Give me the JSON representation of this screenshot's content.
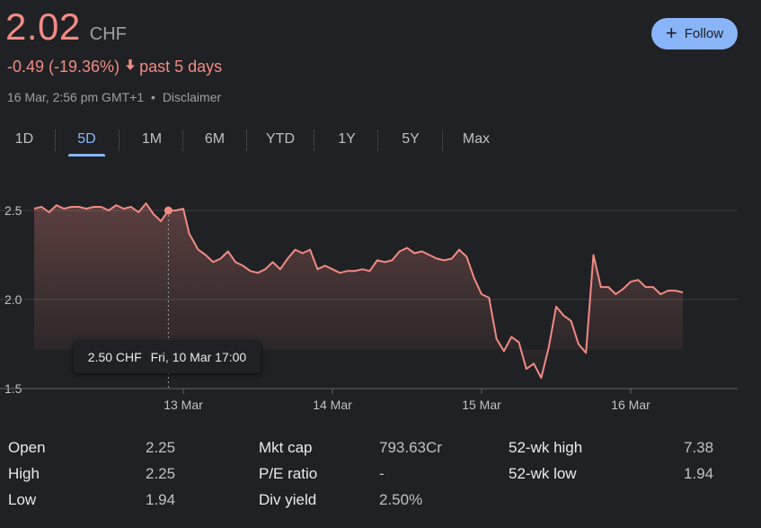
{
  "quote": {
    "price": "2.02",
    "currency": "CHF",
    "change_text": "-0.49 (-19.36%)",
    "period_text": "past 5 days",
    "timestamp": "16 Mar, 2:56 pm GMT+1",
    "separator": "•",
    "disclaimer": "Disclaimer",
    "follow_label": "Follow",
    "accent_color": "#f28b82",
    "link_color": "#8ab4f8"
  },
  "tabs": [
    {
      "label": "1D",
      "active": false
    },
    {
      "label": "5D",
      "active": true
    },
    {
      "label": "1M",
      "active": false
    },
    {
      "label": "6M",
      "active": false
    },
    {
      "label": "YTD",
      "active": false
    },
    {
      "label": "1Y",
      "active": false
    },
    {
      "label": "5Y",
      "active": false
    },
    {
      "label": "Max",
      "active": false
    }
  ],
  "tooltip": {
    "value": "2.50 CHF",
    "time": "Fri, 10 Mar 17:00"
  },
  "chart_data": {
    "type": "area",
    "ylim": [
      1.5,
      2.55
    ],
    "yticks": [
      2.5,
      2.0,
      1.5
    ],
    "ytick_labels": [
      "2.5",
      "2.0",
      "1.5"
    ],
    "xticks": [
      {
        "label": "13 Mar",
        "x": 2.0
      },
      {
        "label": "14 Mar",
        "x": 3.0
      },
      {
        "label": "15 Mar",
        "x": 4.0
      },
      {
        "label": "16 Mar",
        "x": 5.0
      }
    ],
    "xlim": [
      1.0,
      5.75
    ],
    "highlight": {
      "x": 1.9,
      "y": 2.5
    },
    "series": [
      {
        "values": [
          [
            1.0,
            2.51
          ],
          [
            1.05,
            2.52
          ],
          [
            1.1,
            2.49
          ],
          [
            1.15,
            2.53
          ],
          [
            1.2,
            2.51
          ],
          [
            1.25,
            2.52
          ],
          [
            1.3,
            2.52
          ],
          [
            1.35,
            2.51
          ],
          [
            1.4,
            2.52
          ],
          [
            1.45,
            2.52
          ],
          [
            1.5,
            2.5
          ],
          [
            1.55,
            2.53
          ],
          [
            1.6,
            2.51
          ],
          [
            1.65,
            2.52
          ],
          [
            1.7,
            2.49
          ],
          [
            1.75,
            2.54
          ],
          [
            1.8,
            2.48
          ],
          [
            1.85,
            2.44
          ],
          [
            1.9,
            2.5
          ],
          [
            1.95,
            2.5
          ],
          [
            2.0,
            2.51
          ],
          [
            2.04,
            2.37
          ],
          [
            2.1,
            2.28
          ],
          [
            2.15,
            2.25
          ],
          [
            2.2,
            2.21
          ],
          [
            2.25,
            2.23
          ],
          [
            2.3,
            2.27
          ],
          [
            2.35,
            2.21
          ],
          [
            2.4,
            2.19
          ],
          [
            2.45,
            2.16
          ],
          [
            2.5,
            2.15
          ],
          [
            2.55,
            2.17
          ],
          [
            2.6,
            2.21
          ],
          [
            2.65,
            2.17
          ],
          [
            2.7,
            2.23
          ],
          [
            2.75,
            2.28
          ],
          [
            2.8,
            2.26
          ],
          [
            2.85,
            2.28
          ],
          [
            2.9,
            2.17
          ],
          [
            2.95,
            2.19
          ],
          [
            3.0,
            2.17
          ],
          [
            3.05,
            2.15
          ],
          [
            3.1,
            2.16
          ],
          [
            3.15,
            2.16
          ],
          [
            3.2,
            2.17
          ],
          [
            3.25,
            2.16
          ],
          [
            3.3,
            2.22
          ],
          [
            3.35,
            2.21
          ],
          [
            3.4,
            2.22
          ],
          [
            3.45,
            2.27
          ],
          [
            3.5,
            2.29
          ],
          [
            3.55,
            2.26
          ],
          [
            3.6,
            2.27
          ],
          [
            3.65,
            2.25
          ],
          [
            3.7,
            2.23
          ],
          [
            3.75,
            2.22
          ],
          [
            3.8,
            2.23
          ],
          [
            3.85,
            2.28
          ],
          [
            3.9,
            2.24
          ],
          [
            3.95,
            2.12
          ],
          [
            4.0,
            2.03
          ],
          [
            4.05,
            2.01
          ],
          [
            4.1,
            1.78
          ],
          [
            4.15,
            1.71
          ],
          [
            4.2,
            1.79
          ],
          [
            4.25,
            1.76
          ],
          [
            4.3,
            1.61
          ],
          [
            4.35,
            1.64
          ],
          [
            4.4,
            1.56
          ],
          [
            4.45,
            1.73
          ],
          [
            4.5,
            1.96
          ],
          [
            4.55,
            1.91
          ],
          [
            4.6,
            1.88
          ],
          [
            4.65,
            1.75
          ],
          [
            4.7,
            1.7
          ],
          [
            4.75,
            2.25
          ],
          [
            4.8,
            2.07
          ],
          [
            4.85,
            2.07
          ],
          [
            4.9,
            2.03
          ],
          [
            4.95,
            2.06
          ],
          [
            5.0,
            2.1
          ],
          [
            5.05,
            2.11
          ],
          [
            5.1,
            2.07
          ],
          [
            5.15,
            2.07
          ],
          [
            5.2,
            2.03
          ],
          [
            5.25,
            2.05
          ],
          [
            5.3,
            2.05
          ],
          [
            5.35,
            2.04
          ]
        ]
      }
    ]
  },
  "stats": [
    {
      "label": "Open",
      "value": "2.25"
    },
    {
      "label": "High",
      "value": "2.25"
    },
    {
      "label": "Low",
      "value": "1.94"
    },
    {
      "label": "Mkt cap",
      "value": "793.63Cr"
    },
    {
      "label": "P/E ratio",
      "value": "-"
    },
    {
      "label": "Div yield",
      "value": "2.50%"
    },
    {
      "label": "52-wk high",
      "value": "7.38"
    },
    {
      "label": "52-wk low",
      "value": "1.94"
    }
  ]
}
